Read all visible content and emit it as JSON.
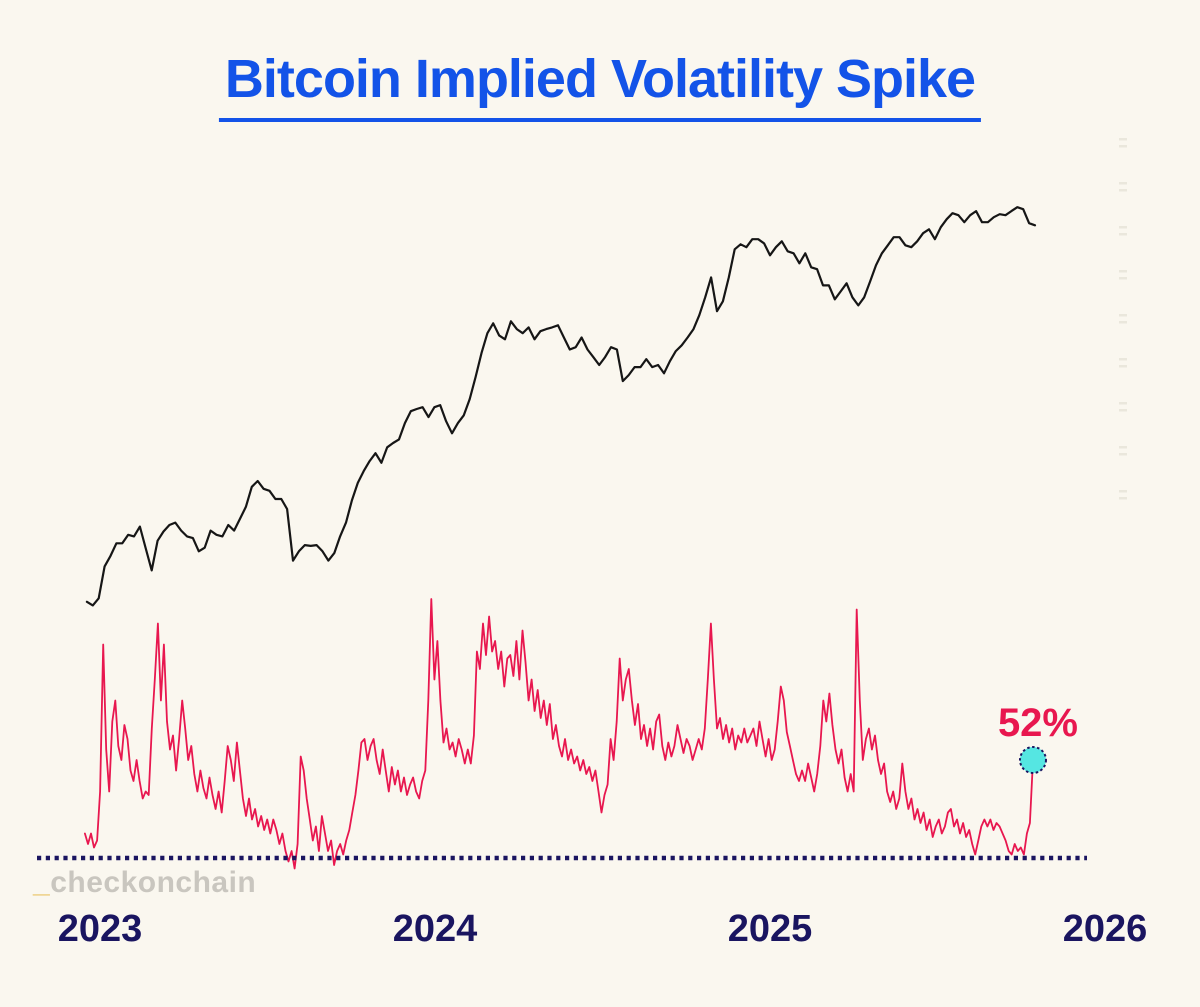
{
  "title": {
    "text": "Bitcoin Implied Volatility Spike",
    "color": "#1353e8"
  },
  "watermark": {
    "prefix": "_",
    "text": "checkonchain",
    "prefix_color": "#e9c364",
    "text_color": "#c9c6bf"
  },
  "chart_data": {
    "type": "line",
    "title": "Bitcoin Implied Volatility Spike",
    "x_axis": {
      "ticks": [
        "2023",
        "2024",
        "2025",
        "2026"
      ],
      "range_years": [
        2022.95,
        2026.0
      ],
      "tick_color": "#1a1560"
    },
    "y_axis": {
      "visible": false,
      "note": "no labeled y-axis in image; volatility series anchored to the 52% end-point label, price series estimated on log scale"
    },
    "legend": {
      "visible": false
    },
    "grid": false,
    "series": [
      {
        "name": "bitcoin-price",
        "color": "#161616",
        "stroke_width": 2.2,
        "unit": "USD thousands (estimated, log scale)",
        "x_start": 2022.961,
        "x_end": 2025.791,
        "values": [
          16.7,
          16.4,
          17.0,
          20.0,
          21.1,
          22.5,
          22.5,
          23.5,
          23.3,
          24.5,
          21.9,
          19.6,
          22.8,
          23.9,
          24.7,
          25.0,
          24.0,
          23.3,
          23.1,
          21.6,
          22.0,
          24.0,
          23.5,
          23.3,
          24.7,
          24.0,
          25.5,
          27.1,
          30.0,
          30.9,
          29.7,
          29.4,
          28.2,
          28.2,
          26.8,
          20.6,
          21.6,
          22.3,
          22.2,
          22.3,
          21.6,
          20.6,
          21.4,
          23.3,
          25.0,
          28.0,
          30.6,
          32.5,
          34.2,
          35.6,
          33.9,
          36.7,
          37.5,
          38.2,
          41.5,
          44.1,
          44.6,
          45.0,
          42.8,
          45.0,
          45.5,
          41.9,
          39.4,
          41.5,
          43.2,
          46.9,
          52.5,
          59.3,
          65.6,
          69.0,
          64.9,
          63.6,
          69.7,
          67.0,
          65.6,
          67.6,
          63.6,
          66.3,
          67.0,
          67.6,
          68.3,
          64.2,
          60.4,
          61.1,
          64.2,
          60.4,
          58.1,
          55.8,
          58.1,
          61.1,
          60.4,
          51.4,
          53.0,
          55.2,
          55.2,
          57.5,
          55.2,
          55.8,
          53.5,
          56.9,
          59.9,
          61.7,
          64.2,
          67.0,
          71.9,
          78.8,
          87.2,
          73.4,
          77.2,
          87.2,
          100.6,
          103.2,
          101.7,
          105.9,
          105.9,
          103.7,
          97.6,
          101.7,
          104.8,
          99.6,
          98.6,
          93.7,
          98.6,
          91.8,
          90.9,
          83.7,
          83.7,
          78.0,
          81.2,
          84.6,
          78.8,
          75.6,
          78.8,
          85.4,
          92.8,
          98.6,
          102.7,
          107.0,
          107.0,
          102.7,
          101.7,
          104.8,
          109.2,
          111.4,
          105.9,
          112.6,
          117.3,
          120.9,
          119.7,
          115.5,
          119.7,
          122.2,
          115.5,
          115.5,
          118.5,
          120.3,
          119.7,
          122.2,
          124.7,
          123.4,
          114.9,
          113.7
        ]
      },
      {
        "name": "implied-volatility",
        "color": "#e8174f",
        "stroke_width": 1.8,
        "unit": "percent (estimated; only the 52% end value is labeled)",
        "x_start": 2022.955,
        "x_end": 2025.785,
        "values": [
          31,
          28,
          31,
          27,
          29,
          43,
          85,
          55,
          43,
          63,
          69,
          56,
          52,
          62,
          58,
          49,
          46,
          52,
          46,
          41,
          43,
          42,
          61,
          75,
          91,
          69,
          85,
          63,
          55,
          59,
          49,
          58,
          69,
          61,
          52,
          56,
          48,
          43,
          49,
          44,
          41,
          47,
          42,
          38,
          43,
          37,
          46,
          56,
          52,
          46,
          57,
          49,
          41,
          36,
          41,
          35,
          38,
          33,
          36,
          32,
          35,
          31,
          35,
          32,
          28,
          31,
          26,
          23,
          26,
          21,
          28,
          53,
          49,
          41,
          35,
          29,
          33,
          26,
          36,
          31,
          26,
          29,
          22,
          26,
          28,
          25,
          29,
          32,
          37,
          42,
          49,
          57,
          58,
          52,
          56,
          58,
          52,
          48,
          55,
          49,
          43,
          50,
          45,
          49,
          43,
          47,
          42,
          45,
          47,
          43,
          41,
          46,
          49,
          69,
          98,
          75,
          86,
          69,
          57,
          61,
          55,
          57,
          53,
          58,
          55,
          51,
          55,
          51,
          59,
          83,
          78,
          91,
          82,
          93,
          83,
          86,
          78,
          83,
          73,
          81,
          82,
          76,
          86,
          75,
          89,
          80,
          69,
          75,
          66,
          72,
          64,
          69,
          62,
          68,
          58,
          62,
          56,
          53,
          58,
          52,
          55,
          51,
          53,
          49,
          52,
          48,
          50,
          46,
          49,
          43,
          37,
          42,
          45,
          58,
          52,
          63,
          81,
          69,
          75,
          78,
          69,
          62,
          68,
          58,
          62,
          56,
          61,
          55,
          63,
          65,
          56,
          52,
          57,
          53,
          56,
          62,
          58,
          54,
          58,
          56,
          52,
          55,
          58,
          55,
          61,
          75,
          91,
          75,
          61,
          64,
          58,
          62,
          57,
          61,
          55,
          59,
          57,
          61,
          57,
          59,
          61,
          56,
          63,
          58,
          53,
          58,
          52,
          55,
          63,
          73,
          69,
          60,
          56,
          52,
          48,
          46,
          49,
          46,
          51,
          47,
          43,
          48,
          56,
          69,
          63,
          71,
          62,
          55,
          51,
          55,
          47,
          43,
          48,
          43,
          95,
          69,
          52,
          58,
          61,
          55,
          59,
          52,
          48,
          51,
          43,
          40,
          43,
          38,
          41,
          51,
          43,
          38,
          41,
          35,
          38,
          34,
          37,
          32,
          35,
          30,
          33,
          35,
          31,
          33,
          37,
          38,
          33,
          35,
          31,
          34,
          30,
          32,
          28,
          25,
          29,
          33,
          35,
          33,
          35,
          32,
          34,
          33,
          31,
          29,
          26,
          25,
          28,
          26,
          27,
          25,
          31,
          34,
          52
        ]
      }
    ],
    "baseline": {
      "style": "dotted",
      "color": "#1a1560",
      "value_pct": 24,
      "note": "dotted low-volatility reference line (level estimated)"
    },
    "annotation": {
      "label": "52%",
      "value_pct": 52,
      "text_color": "#e8174f",
      "marker_fill": "#55e6e2",
      "marker_stroke": "#1a1560"
    }
  }
}
